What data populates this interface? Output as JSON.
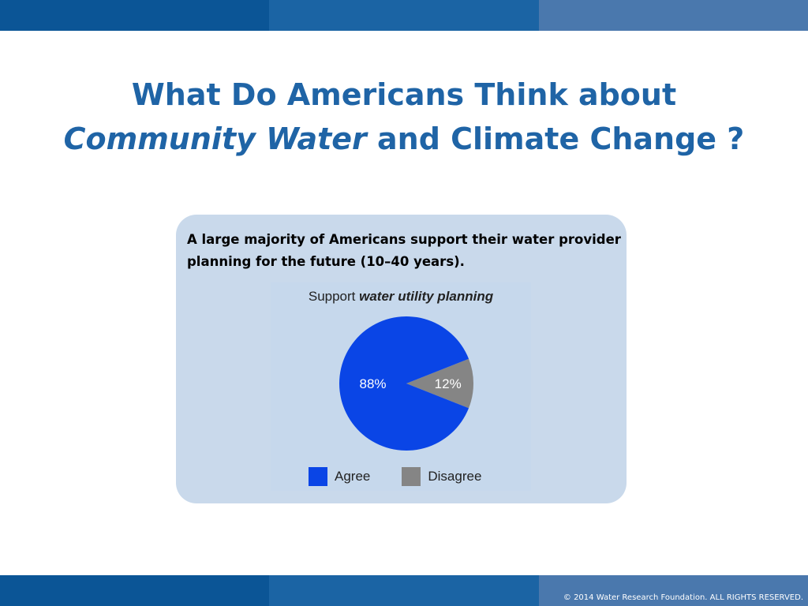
{
  "slide": {
    "title_line1": "What Do Americans Think about",
    "title_line2_em": "Community Water",
    "title_line2_rest": " and Climate Change ?",
    "panel_text": "A large majority of Americans support their water provider planning for the future (10–40 years).",
    "footer": "© 2014 Water Research Foundation. ALL RIGHTS RESERVED."
  },
  "colors": {
    "title": "#1f64a6",
    "band_dark": "#0b5596",
    "band_mid": "#1b64a4",
    "band_light": "#4a78ad",
    "panel_bg": "#c9d9eb"
  },
  "chart_data": {
    "type": "pie",
    "title_prefix": "Support ",
    "title_em": "water utility planning",
    "slices": [
      {
        "label": "Agree",
        "value": 88,
        "value_label": "88%",
        "color": "#0a45e6"
      },
      {
        "label": "Disagree",
        "value": 12,
        "value_label": "12%",
        "color": "#858585"
      }
    ],
    "legend": [
      "Agree",
      "Disagree"
    ],
    "legend_position": "bottom"
  }
}
